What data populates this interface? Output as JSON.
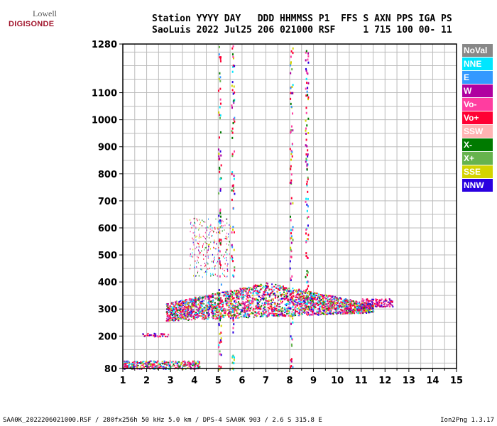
{
  "logo": {
    "top": "Lowell",
    "main": "DIGISONDE"
  },
  "header": {
    "line1": "Station YYYY DAY   DDD HHMMSS P1  FFS S AXN PPS IGA PS",
    "line2": "SaoLuis 2022 Jul25 206 021000 RSF     1 715 100 00- 11"
  },
  "legend": [
    {
      "label": "NoVal",
      "bg": "#888888",
      "fg": "#ffffff"
    },
    {
      "label": "NNE",
      "bg": "#00e6ff",
      "fg": "#ffffff"
    },
    {
      "label": "E",
      "bg": "#3399ff",
      "fg": "#ffffff"
    },
    {
      "label": "W",
      "bg": "#b000a0",
      "fg": "#ffffff"
    },
    {
      "label": "Vo-",
      "bg": "#ff3da0",
      "fg": "#ffffff"
    },
    {
      "label": "Vo+",
      "bg": "#ff0033",
      "fg": "#ffffff"
    },
    {
      "label": "SSW",
      "bg": "#ffb3b3",
      "fg": "#ffffff"
    },
    {
      "label": "X-",
      "bg": "#007a00",
      "fg": "#ffffff"
    },
    {
      "label": "X+",
      "bg": "#66b34d",
      "fg": "#ffffff"
    },
    {
      "label": "SSE",
      "bg": "#d4d400",
      "fg": "#ffffff"
    },
    {
      "label": "NNW",
      "bg": "#2a00e0",
      "fg": "#ffffff"
    }
  ],
  "footer": {
    "left": "SAA0K_2022206021000.RSF / 280fx256h 50 kHz 5.0 km / DPS-4 SAA0K 903 / 2.6 S 315.8 E",
    "right": "Ion2Png 1.3.17"
  },
  "chart_data": {
    "type": "scatter",
    "x_ticks": [
      1,
      2,
      3,
      4,
      5,
      6,
      7,
      8,
      9,
      10,
      11,
      12,
      13,
      14,
      15
    ],
    "y_ticks": [
      80,
      200,
      300,
      400,
      500,
      600,
      700,
      800,
      900,
      1000,
      1100,
      1280
    ],
    "xlim": [
      1,
      15
    ],
    "ylim": [
      80,
      1280
    ],
    "grid": true,
    "legend_placement": "right",
    "regions": [
      {
        "name": "F-trace",
        "x": [
          2.8,
          11.5
        ],
        "y_top": [
          290,
          400
        ],
        "y_bottom": [
          255,
          290
        ]
      },
      {
        "name": "F-trace-tail",
        "x": [
          11.0,
          12.3
        ],
        "y": [
          310,
          340
        ]
      },
      {
        "name": "E-echoes",
        "x": [
          1.0,
          4.2
        ],
        "y": [
          80,
          120
        ]
      },
      {
        "name": "sporadic",
        "x": [
          1.8,
          2.9
        ],
        "y": [
          200,
          215
        ]
      },
      {
        "name": "spread",
        "x": [
          3.8,
          5.5
        ],
        "y": [
          420,
          640
        ]
      },
      {
        "name": "vertical-streak-1",
        "x": [
          5.0,
          5.1
        ],
        "y": [
          80,
          1280
        ]
      },
      {
        "name": "vertical-streak-2",
        "x": [
          5.5,
          5.7
        ],
        "y": [
          80,
          1280
        ]
      },
      {
        "name": "vertical-streak-3",
        "x": [
          8.0,
          8.15
        ],
        "y": [
          80,
          1280
        ]
      },
      {
        "name": "vertical-streak-4",
        "x": [
          8.6,
          8.8
        ],
        "y": [
          300,
          1280
        ]
      }
    ]
  }
}
